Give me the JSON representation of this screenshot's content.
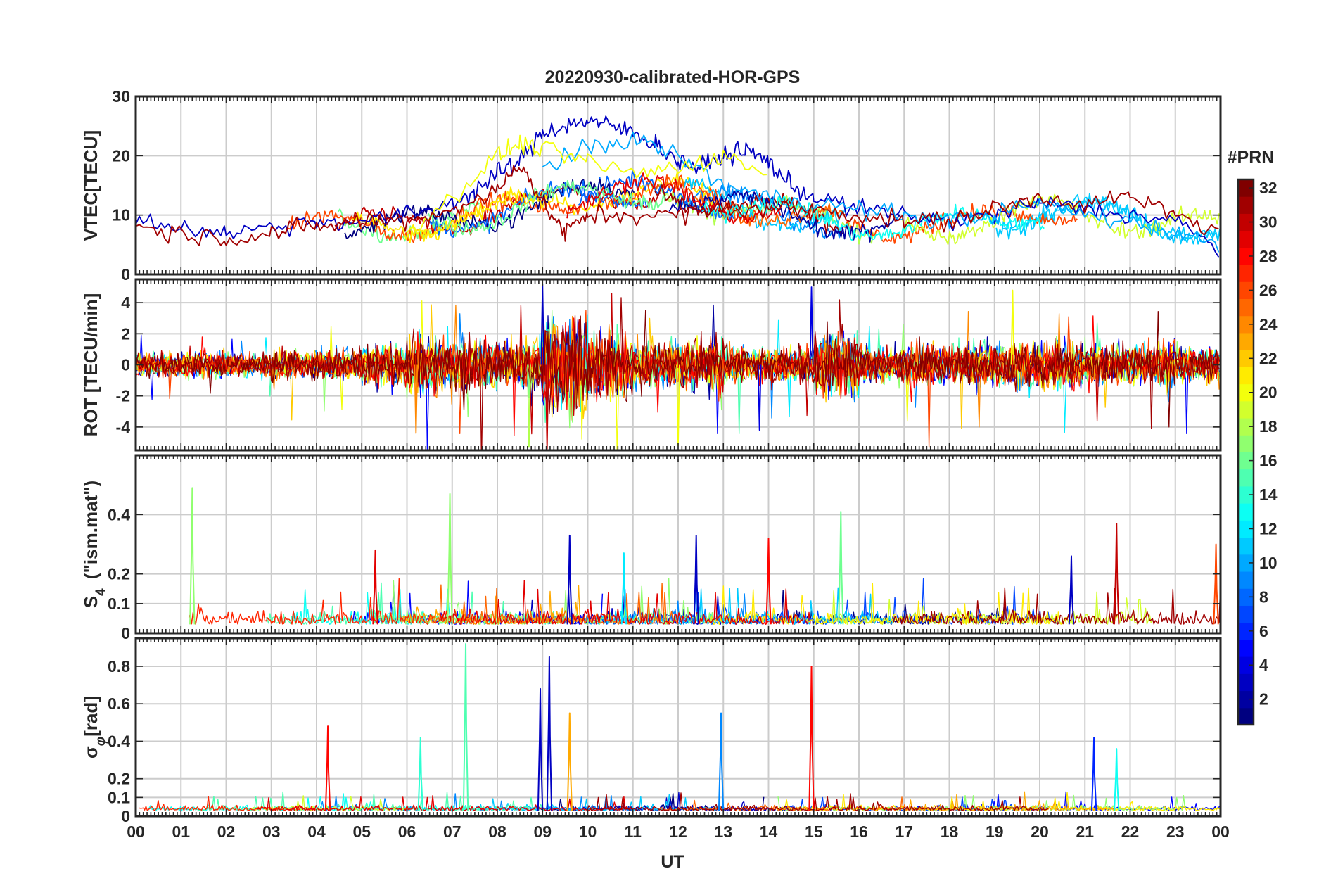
{
  "figure_title": "20220930-calibrated-HOR-GPS",
  "x_axis_label": "UT",
  "colorbar_title": "#PRN",
  "colorbar_ticks": [
    "2",
    "4",
    "6",
    "8",
    "10",
    "12",
    "14",
    "16",
    "18",
    "20",
    "22",
    "24",
    "26",
    "28",
    "30",
    "32"
  ],
  "x_ticks": [
    "00",
    "01",
    "02",
    "03",
    "04",
    "05",
    "06",
    "07",
    "08",
    "09",
    "10",
    "11",
    "12",
    "13",
    "14",
    "15",
    "16",
    "17",
    "18",
    "19",
    "20",
    "21",
    "22",
    "23",
    "00"
  ],
  "colors": {
    "frame": "#262626",
    "grid": "#cccccc",
    "colormap": [
      "#000080",
      "#0000ff",
      "#0080ff",
      "#00ffff",
      "#80ff80",
      "#ffff00",
      "#ff8000",
      "#ff0000",
      "#800000"
    ]
  },
  "chart_data": [
    {
      "type": "line",
      "panel": "VTEC",
      "ylabel": "VTEC[TECU]",
      "ylim": [
        0,
        30
      ],
      "yticks": [
        "0",
        "10",
        "20",
        "30"
      ],
      "xlabel": "",
      "xlim": [
        0,
        24
      ],
      "grid": true,
      "color_by": "PRN",
      "description_series": [
        {
          "prn": 3,
          "x": [
            0,
            1,
            2,
            3,
            4,
            5,
            6,
            7,
            7.5,
            8,
            8.5,
            9,
            9.5,
            10,
            10.5,
            11,
            11.5,
            12,
            12.5,
            13,
            13.5,
            14,
            14.5,
            15,
            16,
            17,
            18,
            19,
            20,
            21,
            22,
            23,
            24
          ],
          "y": [
            9,
            8,
            7,
            8,
            9,
            9,
            10,
            12,
            14,
            17,
            19,
            24,
            25,
            26,
            25,
            24,
            22,
            19,
            18,
            20,
            21,
            19,
            15,
            13,
            11,
            10,
            9,
            10,
            12,
            11,
            10,
            9,
            4
          ]
        },
        {
          "prn": 10,
          "x": [
            9,
            10,
            11,
            12,
            13,
            14,
            15,
            16,
            17,
            18,
            19,
            20,
            21,
            22,
            23,
            24
          ],
          "y": [
            18,
            21,
            23,
            20,
            15,
            13,
            12,
            11,
            10,
            9,
            10,
            12,
            10,
            9,
            7,
            5
          ]
        },
        {
          "prn": 20,
          "x": [
            6,
            7,
            8,
            8.5,
            9,
            10,
            11,
            12,
            13,
            14
          ],
          "y": [
            7,
            13,
            20,
            22,
            21,
            19,
            17,
            18,
            20,
            17
          ]
        },
        {
          "prn": 31,
          "x": [
            0,
            1,
            2,
            3,
            4,
            5,
            6,
            7,
            8,
            8.5,
            9,
            9.5,
            10,
            11,
            12,
            13,
            14,
            15,
            16,
            17,
            18,
            19,
            20,
            21,
            22,
            23,
            24
          ],
          "y": [
            8,
            7,
            6,
            7,
            8,
            9,
            9,
            11,
            14,
            19,
            12,
            7,
            10,
            10,
            10,
            11,
            11,
            11,
            10,
            9,
            9,
            11,
            13,
            12,
            13,
            10,
            7
          ]
        }
      ]
    },
    {
      "type": "line",
      "panel": "ROT",
      "ylabel": "ROT [TECU/min]",
      "ylim": [
        -5.5,
        5.5
      ],
      "yticks": [
        "-4",
        "-2",
        "0",
        "2",
        "4"
      ],
      "xlim": [
        0,
        24
      ],
      "grid": true,
      "baseline": 0,
      "spread_by_hour": [
        1.0,
        1.2,
        1.0,
        1.2,
        1.3,
        1.8,
        2.5,
        2.2,
        2.0,
        4.5,
        2.8,
        2.0,
        2.2,
        1.5,
        1.5,
        2.8,
        1.5,
        1.8,
        1.8,
        2.0,
        2.0,
        1.8,
        1.8,
        1.5,
        1.2
      ],
      "notable_spikes": [
        {
          "x": 9.0,
          "y": 5.2
        },
        {
          "x": 9.1,
          "y": -5.4
        },
        {
          "x": 8.7,
          "y": -5.3
        },
        {
          "x": 12.0,
          "y": -5.2
        },
        {
          "x": 14.95,
          "y": 5.0
        },
        {
          "x": 19.4,
          "y": 4.8
        },
        {
          "x": 6.2,
          "y": -4.4
        },
        {
          "x": 13.8,
          "y": -4.2
        }
      ]
    },
    {
      "type": "line",
      "panel": "S4",
      "ylabel": "S_4 (\"ism.mat\")",
      "ylim": [
        0,
        0.6
      ],
      "yticks": [
        "0",
        "0.1",
        "0.2",
        "0.4"
      ],
      "xlim": [
        0,
        24
      ],
      "grid": true,
      "baseline": 0.03,
      "notable_spikes": [
        {
          "x": 1.25,
          "y": 0.49,
          "prn": 17
        },
        {
          "x": 6.95,
          "y": 0.47,
          "prn": 17
        },
        {
          "x": 5.3,
          "y": 0.28,
          "prn": 29
        },
        {
          "x": 9.6,
          "y": 0.33,
          "prn": 3
        },
        {
          "x": 12.4,
          "y": 0.33,
          "prn": 3
        },
        {
          "x": 14.0,
          "y": 0.32,
          "prn": 28
        },
        {
          "x": 15.6,
          "y": 0.41,
          "prn": 16
        },
        {
          "x": 21.7,
          "y": 0.37,
          "prn": 30
        },
        {
          "x": 23.9,
          "y": 0.3,
          "prn": 26
        },
        {
          "x": 10.8,
          "y": 0.27,
          "prn": 12
        },
        {
          "x": 20.7,
          "y": 0.26,
          "prn": 3
        }
      ]
    },
    {
      "type": "line",
      "panel": "sigma_phi",
      "ylabel": "σ_φ[rad]",
      "ylim": [
        0,
        0.95
      ],
      "yticks": [
        "0",
        "0.1",
        "0.2",
        "0.4",
        "0.6",
        "0.8"
      ],
      "xlim": [
        0,
        24
      ],
      "grid": true,
      "baseline": 0.03,
      "notable_spikes": [
        {
          "x": 7.3,
          "y": 0.92,
          "prn": 15
        },
        {
          "x": 9.15,
          "y": 0.85,
          "prn": 3
        },
        {
          "x": 8.95,
          "y": 0.68,
          "prn": 3
        },
        {
          "x": 14.95,
          "y": 0.8,
          "prn": 28
        },
        {
          "x": 12.95,
          "y": 0.55,
          "prn": 9
        },
        {
          "x": 4.25,
          "y": 0.48,
          "prn": 28
        },
        {
          "x": 9.6,
          "y": 0.55,
          "prn": 23
        },
        {
          "x": 21.2,
          "y": 0.42,
          "prn": 6
        },
        {
          "x": 21.7,
          "y": 0.36,
          "prn": 13
        },
        {
          "x": 6.3,
          "y": 0.42,
          "prn": 14
        }
      ]
    }
  ]
}
